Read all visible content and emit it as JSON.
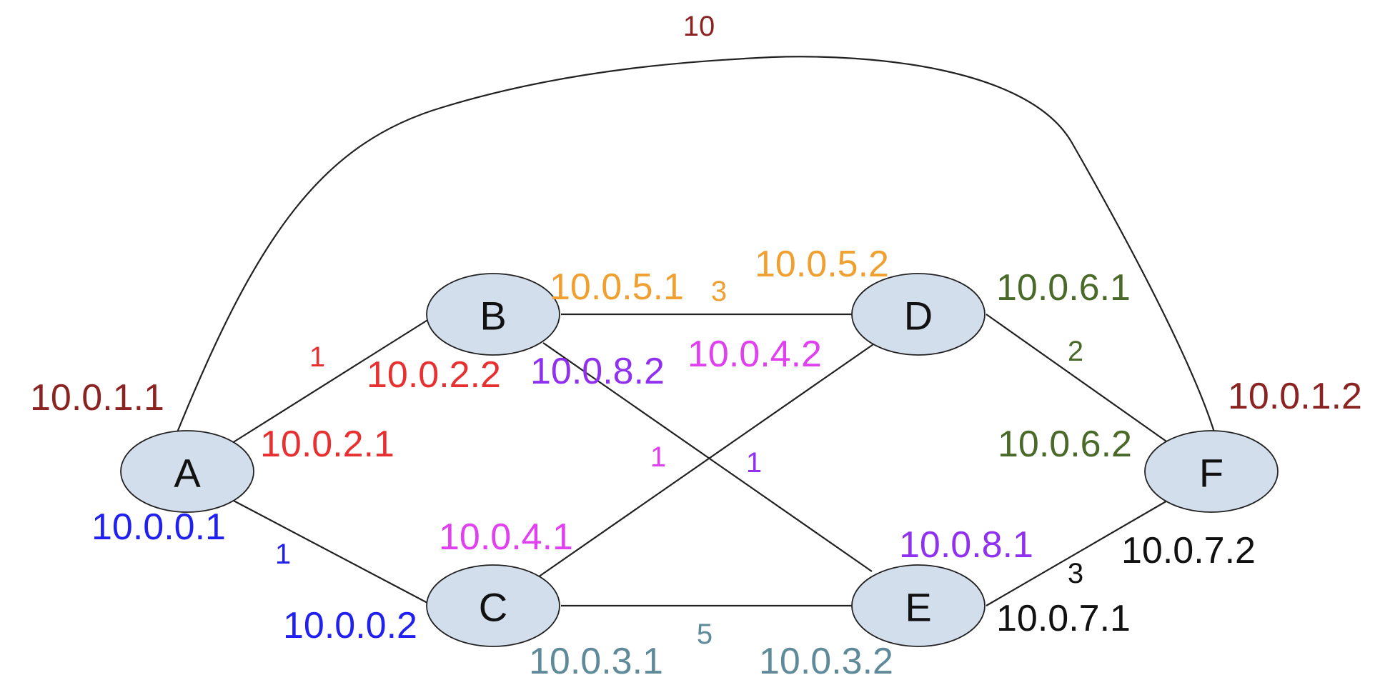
{
  "colors": {
    "node_fill": "#d3deec",
    "edge_stroke": "#222222",
    "dark_red": "#8b2323",
    "red": "#e83030",
    "blue": "#2020f0",
    "orange": "#f0a030",
    "magenta": "#e040f0",
    "purple": "#9030f0",
    "dark_green": "#4a6a2a",
    "steel": "#5f8a99",
    "black": "#111111"
  },
  "nodes": [
    {
      "id": "A",
      "label": "A"
    },
    {
      "id": "B",
      "label": "B"
    },
    {
      "id": "C",
      "label": "C"
    },
    {
      "id": "D",
      "label": "D"
    },
    {
      "id": "E",
      "label": "E"
    },
    {
      "id": "F",
      "label": "F"
    }
  ],
  "links": [
    {
      "from": "A",
      "to": "F",
      "weight": "10",
      "ip_from": "10.0.1.1",
      "ip_to": "10.0.1.2",
      "color": "dark_red"
    },
    {
      "from": "A",
      "to": "B",
      "weight": "1",
      "ip_from": "10.0.2.1",
      "ip_to": "10.0.2.2",
      "color": "red"
    },
    {
      "from": "A",
      "to": "C",
      "weight": "1",
      "ip_from": "10.0.0.1",
      "ip_to": "10.0.0.2",
      "color": "blue"
    },
    {
      "from": "B",
      "to": "D",
      "weight": "3",
      "ip_from": "10.0.5.1",
      "ip_to": "10.0.5.2",
      "color": "orange"
    },
    {
      "from": "C",
      "to": "D",
      "weight": "1",
      "ip_from": "10.0.4.1",
      "ip_to": "10.0.4.2",
      "color": "magenta"
    },
    {
      "from": "B",
      "to": "E",
      "weight": "1",
      "ip_from": "10.0.8.2",
      "ip_to": "10.0.8.1",
      "color": "purple"
    },
    {
      "from": "D",
      "to": "F",
      "weight": "2",
      "ip_from": "10.0.6.1",
      "ip_to": "10.0.6.2",
      "color": "dark_green"
    },
    {
      "from": "C",
      "to": "E",
      "weight": "5",
      "ip_from": "10.0.3.1",
      "ip_to": "10.0.3.2",
      "color": "steel"
    },
    {
      "from": "E",
      "to": "F",
      "weight": "3",
      "ip_from": "10.0.7.1",
      "ip_to": "10.0.7.2",
      "color": "black"
    }
  ]
}
